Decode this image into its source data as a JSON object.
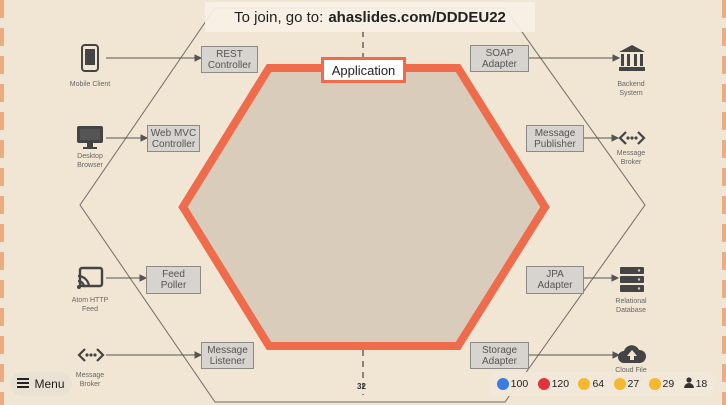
{
  "banner": {
    "prefix": "To join, go to:",
    "url": "ahaslides.com/DDDEU22"
  },
  "diagram": {
    "center_label": "Application",
    "left_adapters": [
      {
        "label": "REST\nController"
      },
      {
        "label": "Web MVC\nController"
      },
      {
        "label": "Feed\nPoller"
      },
      {
        "label": "Message\nListener"
      }
    ],
    "right_adapters": [
      {
        "label": "SOAP\nAdapter"
      },
      {
        "label": "Message\nPublisher"
      },
      {
        "label": "JPA\nAdapter"
      },
      {
        "label": "Storage\nAdapter"
      }
    ],
    "left_actors": [
      {
        "label": "Mobile Client",
        "icon": "mobile-phone-icon"
      },
      {
        "label": "Desktop\nBrowser",
        "icon": "desktop-monitor-icon"
      },
      {
        "label": "Atom HTTP\nFeed",
        "icon": "cast-feed-icon"
      },
      {
        "label": "Message\nBroker",
        "icon": "broker-arrows-icon"
      }
    ],
    "right_actors": [
      {
        "label": "Backend\nSystem",
        "icon": "bank-building-icon"
      },
      {
        "label": "Message\nBroker",
        "icon": "broker-arrows-icon"
      },
      {
        "label": "Relational\nDatabase",
        "icon": "database-icon"
      },
      {
        "label": "Cloud File\nStorage",
        "icon": "cloud-upload-icon"
      }
    ],
    "page_number": "32"
  },
  "menu": {
    "label": "Menu"
  },
  "reactions": [
    {
      "icon": "thumbs-up-icon",
      "count": "100",
      "color": "#3b7ce0"
    },
    {
      "icon": "heart-icon",
      "count": "120",
      "color": "#e0343a"
    },
    {
      "icon": "laugh-icon",
      "count": "64",
      "color": "#f5b82e"
    },
    {
      "icon": "surprise-icon",
      "count": "27",
      "color": "#f5b82e"
    },
    {
      "icon": "sad-icon",
      "count": "29",
      "color": "#f5b82e"
    }
  ],
  "participants": {
    "icon": "person-icon",
    "count": "18"
  },
  "colors": {
    "hexagon_outline": "#ee6b4b",
    "hexagon_fill": "#d9ccba",
    "background": "#f1e6d4"
  }
}
